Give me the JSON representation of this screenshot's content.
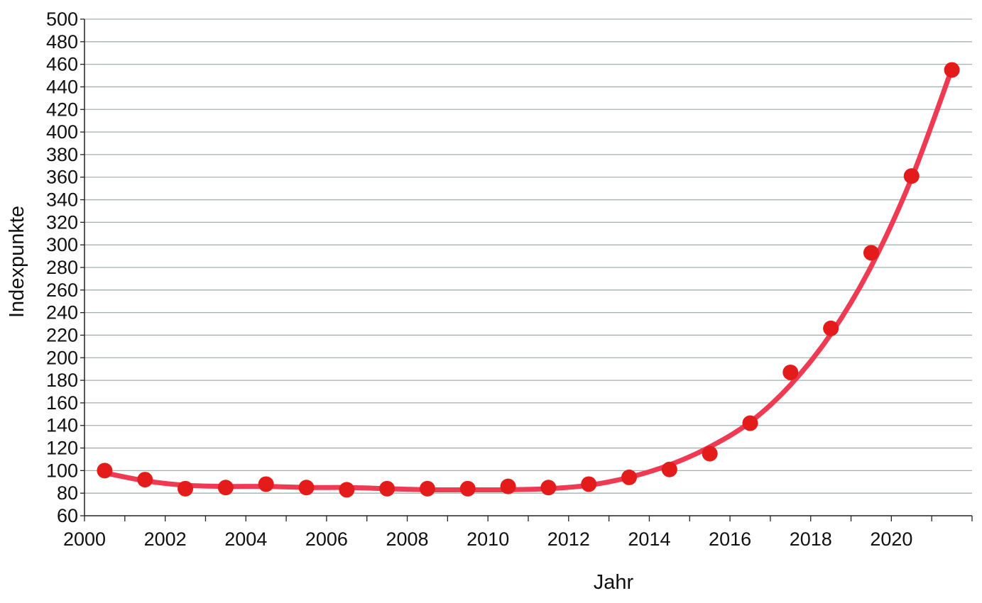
{
  "chart_data": {
    "type": "scatter",
    "title": "",
    "xlabel": "Jahr",
    "ylabel": "Indexpunkte",
    "xlim": [
      2000,
      2022
    ],
    "ylim": [
      60,
      500
    ],
    "x_ticks": [
      "2000",
      "2002",
      "2004",
      "2006",
      "2008",
      "2010",
      "2012",
      "2014",
      "2016",
      "2018",
      "2020"
    ],
    "y_ticks": [
      "60",
      "80",
      "100",
      "120",
      "140",
      "160",
      "180",
      "200",
      "220",
      "240",
      "260",
      "280",
      "300",
      "320",
      "340",
      "360",
      "380",
      "400",
      "420",
      "440",
      "460",
      "480",
      "500"
    ],
    "grid": "horizontal",
    "series": [
      {
        "kind": "points",
        "color": "#e41b1b",
        "x": [
          2000.5,
          2001.5,
          2002.5,
          2003.5,
          2004.5,
          2005.5,
          2006.5,
          2007.5,
          2008.5,
          2009.5,
          2010.5,
          2011.5,
          2012.5,
          2013.5,
          2014.5,
          2015.5,
          2016.5,
          2017.5,
          2018.5,
          2019.5,
          2020.5,
          2021.5
        ],
        "y": [
          100,
          92,
          84,
          85,
          88,
          85,
          83,
          84,
          84,
          84,
          86,
          85,
          88,
          94,
          101,
          115,
          142,
          187,
          226,
          293,
          361,
          455
        ]
      },
      {
        "kind": "trend",
        "color": "#ee3a52",
        "x": [
          2000.5,
          2001.5,
          2002.5,
          2003.5,
          2004.5,
          2005.5,
          2006.5,
          2007.5,
          2008.5,
          2009.5,
          2010.5,
          2011.5,
          2012.5,
          2013.5,
          2014.5,
          2015.5,
          2016.5,
          2017.5,
          2018.5,
          2019.5,
          2020.5,
          2021.5
        ],
        "y": [
          98,
          91,
          87,
          86,
          86,
          85,
          85,
          84,
          83,
          83,
          83,
          84,
          87,
          94,
          105,
          121,
          143,
          176,
          221,
          281,
          359,
          456
        ]
      }
    ]
  }
}
